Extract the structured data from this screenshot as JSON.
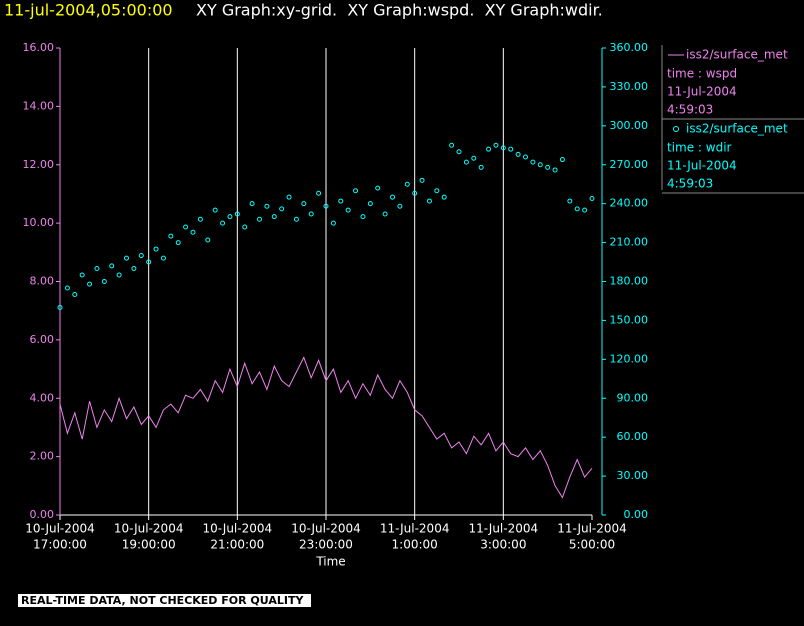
{
  "chart_data": {
    "type": "line",
    "timestamp": "11-jul-2004,05:00:00",
    "title": "XY Graph:xy-grid.  XY Graph:wspd.  XY Graph:wdir.",
    "x_label": "Time",
    "footer": "REAL-TIME DATA, NOT CHECKED FOR QUALITY",
    "legend": "right",
    "grid": true,
    "xlim": [
      "2004-07-10T17:00",
      "2004-07-11T05:00"
    ],
    "xticks": [
      {
        "value": "2004-07-10T17:00",
        "label": [
          "10-Jul-2004",
          "17:00:00"
        ]
      },
      {
        "value": "2004-07-10T19:00",
        "label": [
          "10-Jul-2004",
          "19:00:00"
        ]
      },
      {
        "value": "2004-07-10T21:00",
        "label": [
          "10-Jul-2004",
          "21:00:00"
        ]
      },
      {
        "value": "2004-07-10T23:00",
        "label": [
          "10-Jul-2004",
          "23:00:00"
        ]
      },
      {
        "value": "2004-07-11T01:00",
        "label": [
          "11-Jul-2004",
          "1:00:00"
        ]
      },
      {
        "value": "2004-07-11T03:00",
        "label": [
          "11-Jul-2004",
          "3:00:00"
        ]
      },
      {
        "value": "2004-07-11T05:00",
        "label": [
          "11-Jul-2004",
          "5:00:00"
        ]
      }
    ],
    "ylim": [
      0,
      16
    ],
    "yticks": [
      {
        "value": 0,
        "label": "0.00"
      },
      {
        "value": 2,
        "label": "2.00"
      },
      {
        "value": 4,
        "label": "4.00"
      },
      {
        "value": 6,
        "label": "6.00"
      },
      {
        "value": 8,
        "label": "8.00"
      },
      {
        "value": 10,
        "label": "10.00"
      },
      {
        "value": 12,
        "label": "12.00"
      },
      {
        "value": 14,
        "label": "14.00"
      },
      {
        "value": 16,
        "label": "16.00"
      }
    ],
    "y2lim": [
      0,
      360
    ],
    "y2ticks": [
      {
        "value": 0,
        "label": "0.00"
      },
      {
        "value": 30,
        "label": "30.00"
      },
      {
        "value": 60,
        "label": "60.00"
      },
      {
        "value": 90,
        "label": "90.00"
      },
      {
        "value": 120,
        "label": "120.00"
      },
      {
        "value": 150,
        "label": "150.00"
      },
      {
        "value": 180,
        "label": "180.00"
      },
      {
        "value": 210,
        "label": "210.00"
      },
      {
        "value": 240,
        "label": "240.00"
      },
      {
        "value": 270,
        "label": "270.00"
      },
      {
        "value": 300,
        "label": "300.00"
      },
      {
        "value": 330,
        "label": "330.00"
      },
      {
        "value": 360,
        "label": "360.00"
      }
    ],
    "x": [
      "2004-07-10T17:00",
      "2004-07-10T17:10",
      "2004-07-10T17:20",
      "2004-07-10T17:30",
      "2004-07-10T17:40",
      "2004-07-10T17:50",
      "2004-07-10T18:00",
      "2004-07-10T18:10",
      "2004-07-10T18:20",
      "2004-07-10T18:30",
      "2004-07-10T18:40",
      "2004-07-10T18:50",
      "2004-07-10T19:00",
      "2004-07-10T19:10",
      "2004-07-10T19:20",
      "2004-07-10T19:30",
      "2004-07-10T19:40",
      "2004-07-10T19:50",
      "2004-07-10T20:00",
      "2004-07-10T20:10",
      "2004-07-10T20:20",
      "2004-07-10T20:30",
      "2004-07-10T20:40",
      "2004-07-10T20:50",
      "2004-07-10T21:00",
      "2004-07-10T21:10",
      "2004-07-10T21:20",
      "2004-07-10T21:30",
      "2004-07-10T21:40",
      "2004-07-10T21:50",
      "2004-07-10T22:00",
      "2004-07-10T22:10",
      "2004-07-10T22:20",
      "2004-07-10T22:30",
      "2004-07-10T22:40",
      "2004-07-10T22:50",
      "2004-07-10T23:00",
      "2004-07-10T23:10",
      "2004-07-10T23:20",
      "2004-07-10T23:30",
      "2004-07-10T23:40",
      "2004-07-10T23:50",
      "2004-07-11T00:00",
      "2004-07-11T00:10",
      "2004-07-11T00:20",
      "2004-07-11T00:30",
      "2004-07-11T00:40",
      "2004-07-11T00:50",
      "2004-07-11T01:00",
      "2004-07-11T01:10",
      "2004-07-11T01:20",
      "2004-07-11T01:30",
      "2004-07-11T01:40",
      "2004-07-11T01:50",
      "2004-07-11T02:00",
      "2004-07-11T02:10",
      "2004-07-11T02:20",
      "2004-07-11T02:30",
      "2004-07-11T02:40",
      "2004-07-11T02:50",
      "2004-07-11T03:00",
      "2004-07-11T03:10",
      "2004-07-11T03:20",
      "2004-07-11T03:30",
      "2004-07-11T03:40",
      "2004-07-11T03:50",
      "2004-07-11T04:00",
      "2004-07-11T04:10",
      "2004-07-11T04:20",
      "2004-07-11T04:30",
      "2004-07-11T04:40",
      "2004-07-11T04:50",
      "2004-07-11T05:00"
    ],
    "series": [
      {
        "name": "iss2/surface_met",
        "legend_lines": [
          "time : wspd",
          "11-Jul-2004",
          "4:59:03"
        ],
        "color": "#ee82ee",
        "mode": "lines",
        "axis": "y",
        "values": [
          3.8,
          2.8,
          3.5,
          2.6,
          3.9,
          3.0,
          3.6,
          3.2,
          4.0,
          3.3,
          3.7,
          3.1,
          3.4,
          3.0,
          3.6,
          3.8,
          3.5,
          4.1,
          4.0,
          4.3,
          3.9,
          4.6,
          4.2,
          5.0,
          4.4,
          5.2,
          4.5,
          4.9,
          4.3,
          5.1,
          4.6,
          4.4,
          4.9,
          5.4,
          4.7,
          5.3,
          4.6,
          5.0,
          4.2,
          4.6,
          4.0,
          4.5,
          4.1,
          4.8,
          4.3,
          4.0,
          4.6,
          4.2,
          3.6,
          3.4,
          3.0,
          2.6,
          2.8,
          2.3,
          2.5,
          2.1,
          2.7,
          2.4,
          2.8,
          2.2,
          2.5,
          2.1,
          2.0,
          2.3,
          1.9,
          2.2,
          1.7,
          1.0,
          0.6,
          1.3,
          1.9,
          1.3,
          1.6
        ]
      },
      {
        "name": "iss2/surface_met",
        "legend_lines": [
          "time : wdir",
          "11-Jul-2004",
          "4:59:03"
        ],
        "color": "#00ffff",
        "mode": "markers",
        "axis": "y2",
        "values": [
          160,
          175,
          170,
          185,
          178,
          190,
          180,
          192,
          185,
          198,
          190,
          200,
          195,
          205,
          198,
          215,
          210,
          222,
          218,
          228,
          212,
          235,
          225,
          230,
          232,
          222,
          240,
          228,
          238,
          230,
          236,
          245,
          228,
          240,
          232,
          248,
          238,
          225,
          242,
          235,
          250,
          230,
          240,
          252,
          232,
          245,
          238,
          255,
          248,
          258,
          242,
          250,
          245,
          285,
          280,
          272,
          275,
          268,
          282,
          285,
          283,
          282,
          278,
          276,
          272,
          270,
          268,
          266,
          274,
          242,
          236,
          235,
          244
        ]
      }
    ]
  }
}
